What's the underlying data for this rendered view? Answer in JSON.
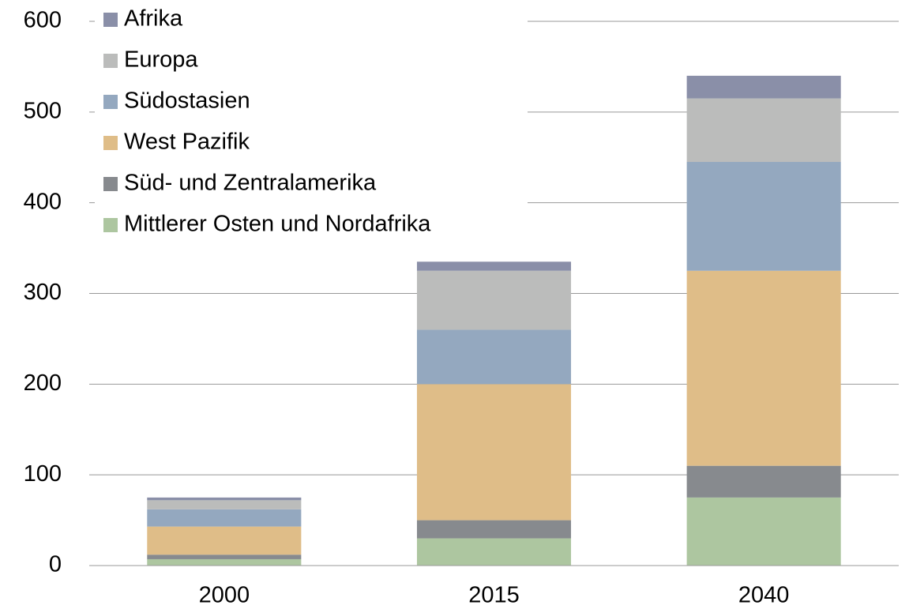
{
  "chart_data": {
    "type": "stacked_bar",
    "categories": [
      "2000",
      "2015",
      "2040"
    ],
    "series": [
      {
        "name": "Mittlerer Osten und Nordafrika",
        "color": "#adc6a0",
        "values": [
          7,
          30,
          75
        ]
      },
      {
        "name": "Süd- und Zentralamerika",
        "color": "#878a8e",
        "values": [
          5,
          20,
          35
        ]
      },
      {
        "name": "West Pazifik",
        "color": "#dfbd88",
        "values": [
          31,
          150,
          215
        ]
      },
      {
        "name": "Südostasien",
        "color": "#94a8bf",
        "values": [
          19,
          60,
          120
        ]
      },
      {
        "name": "Europa",
        "color": "#bbbcbb",
        "values": [
          10,
          65,
          70
        ]
      },
      {
        "name": "Afrika",
        "color": "#8a8fa8",
        "values": [
          3,
          10,
          25
        ]
      }
    ],
    "ylim": [
      0,
      600
    ],
    "yticks": [
      0,
      100,
      200,
      300,
      400,
      500,
      600
    ],
    "grid": true,
    "legend": "upper-left"
  }
}
